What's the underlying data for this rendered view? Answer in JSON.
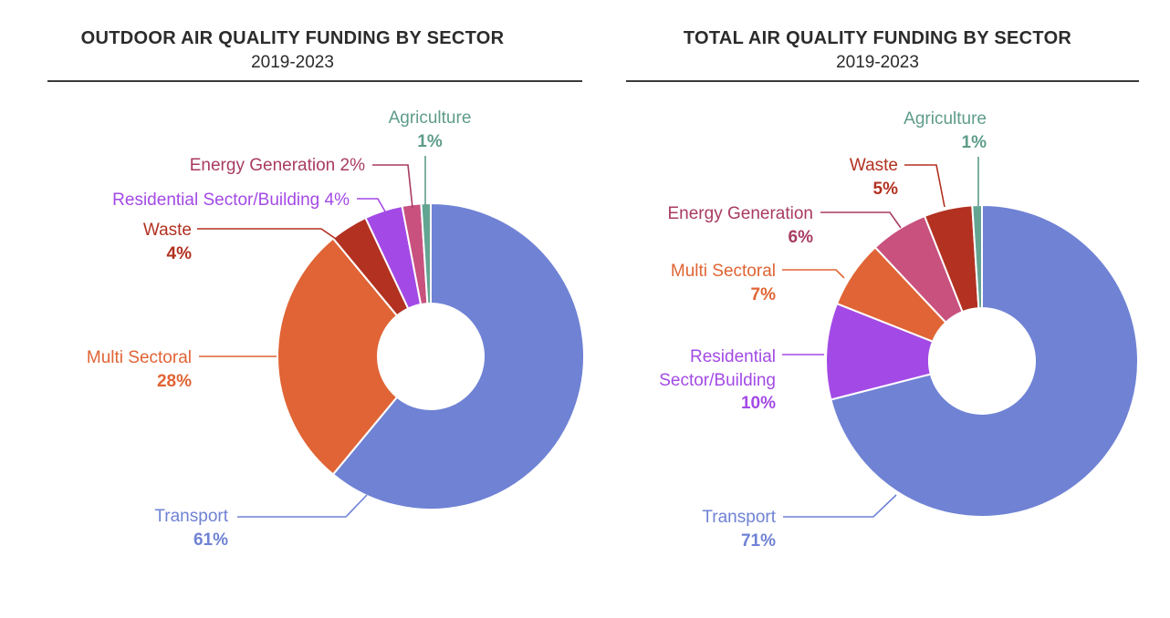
{
  "chart_data": [
    {
      "type": "pie",
      "variant": "donut",
      "title": "OUTDOOR AIR QUALITY FUNDING BY SECTOR",
      "subtitle": "2019-2023",
      "unit": "%",
      "slices": [
        {
          "label": "Transport",
          "value": 61,
          "value_label": "61%",
          "color": "#6F82D4"
        },
        {
          "label": "Multi Sectoral",
          "value": 28,
          "value_label": "28%",
          "color": "#E06435"
        },
        {
          "label": "Waste",
          "value": 4,
          "value_label": "4%",
          "color": "#B23121"
        },
        {
          "label": "Residential Sector/Building",
          "value": 4,
          "value_label": "4%",
          "color": "#A34AE6"
        },
        {
          "label": "Energy Generation",
          "value": 2,
          "value_label": "2%",
          "color": "#C8517E"
        },
        {
          "label": "Agriculture",
          "value": 1,
          "value_label": "1%",
          "color": "#64A592"
        }
      ],
      "label_colors": {
        "Transport": "#6F82D4",
        "Multi Sectoral": "#E06435",
        "Waste": "#B23121",
        "Residential Sector/Building": "#A34AE6",
        "Energy Generation": "#A83B62",
        "Agriculture": "#5E9C8A"
      }
    },
    {
      "type": "pie",
      "variant": "donut",
      "title": "TOTAL AIR QUALITY FUNDING BY SECTOR",
      "subtitle": "2019-2023",
      "unit": "%",
      "slices": [
        {
          "label": "Transport",
          "value": 71,
          "value_label": "71%",
          "color": "#6F82D4"
        },
        {
          "label": "Residential Sector/Building",
          "label_lines": [
            "Residential",
            "Sector/Building"
          ],
          "value": 10,
          "value_label": "10%",
          "color": "#A34AE6"
        },
        {
          "label": "Multi Sectoral",
          "value": 7,
          "value_label": "7%",
          "color": "#E06435"
        },
        {
          "label": "Energy Generation",
          "value": 6,
          "value_label": "6%",
          "color": "#C8517E"
        },
        {
          "label": "Waste",
          "value": 5,
          "value_label": "5%",
          "color": "#B23121"
        },
        {
          "label": "Agriculture",
          "value": 1,
          "value_label": "1%",
          "color": "#64A592"
        }
      ],
      "label_colors": {
        "Transport": "#6F82D4",
        "Residential Sector/Building": "#A34AE6",
        "Multi Sectoral": "#E06435",
        "Energy Generation": "#A83B62",
        "Waste": "#B23121",
        "Agriculture": "#5E9C8A"
      }
    }
  ]
}
